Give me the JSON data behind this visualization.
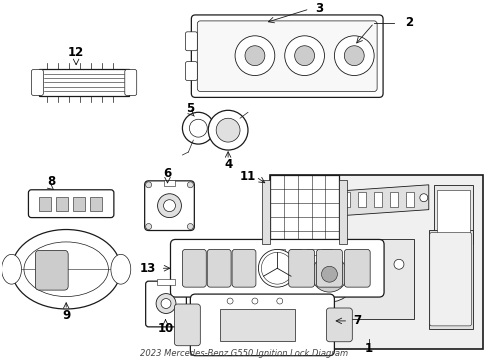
{
  "title": "2023 Mercedes-Benz G550 Ignition Lock Diagram",
  "bg_color": "#ffffff",
  "line_color": "#1a1a1a",
  "label_color": "#000000",
  "figsize": [
    4.89,
    3.6
  ],
  "dpi": 100
}
